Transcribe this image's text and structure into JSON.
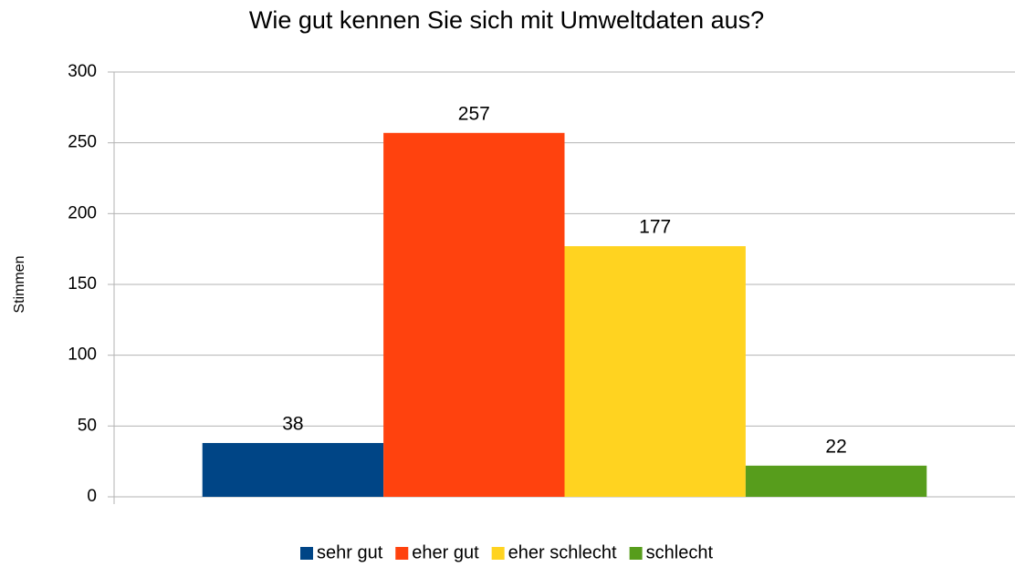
{
  "chart_data": {
    "type": "bar",
    "title": "Wie gut kennen Sie sich mit Umweltdaten aus?",
    "y_label": "Stimmen",
    "categories": [
      null
    ],
    "series": [
      {
        "name": "sehr gut",
        "color": "#004586",
        "values": [
          38
        ]
      },
      {
        "name": "eher gut",
        "color": "#ff420e",
        "values": [
          257
        ]
      },
      {
        "name": "eher schlecht",
        "color": "#ffd320",
        "values": [
          177
        ]
      },
      {
        "name": "schlecht",
        "color": "#579d1c",
        "values": [
          22
        ]
      }
    ],
    "ylim": [
      0,
      300
    ],
    "yticks": [
      0,
      50,
      100,
      150,
      200,
      250,
      300
    ],
    "grid": true,
    "legend": "bottom"
  }
}
